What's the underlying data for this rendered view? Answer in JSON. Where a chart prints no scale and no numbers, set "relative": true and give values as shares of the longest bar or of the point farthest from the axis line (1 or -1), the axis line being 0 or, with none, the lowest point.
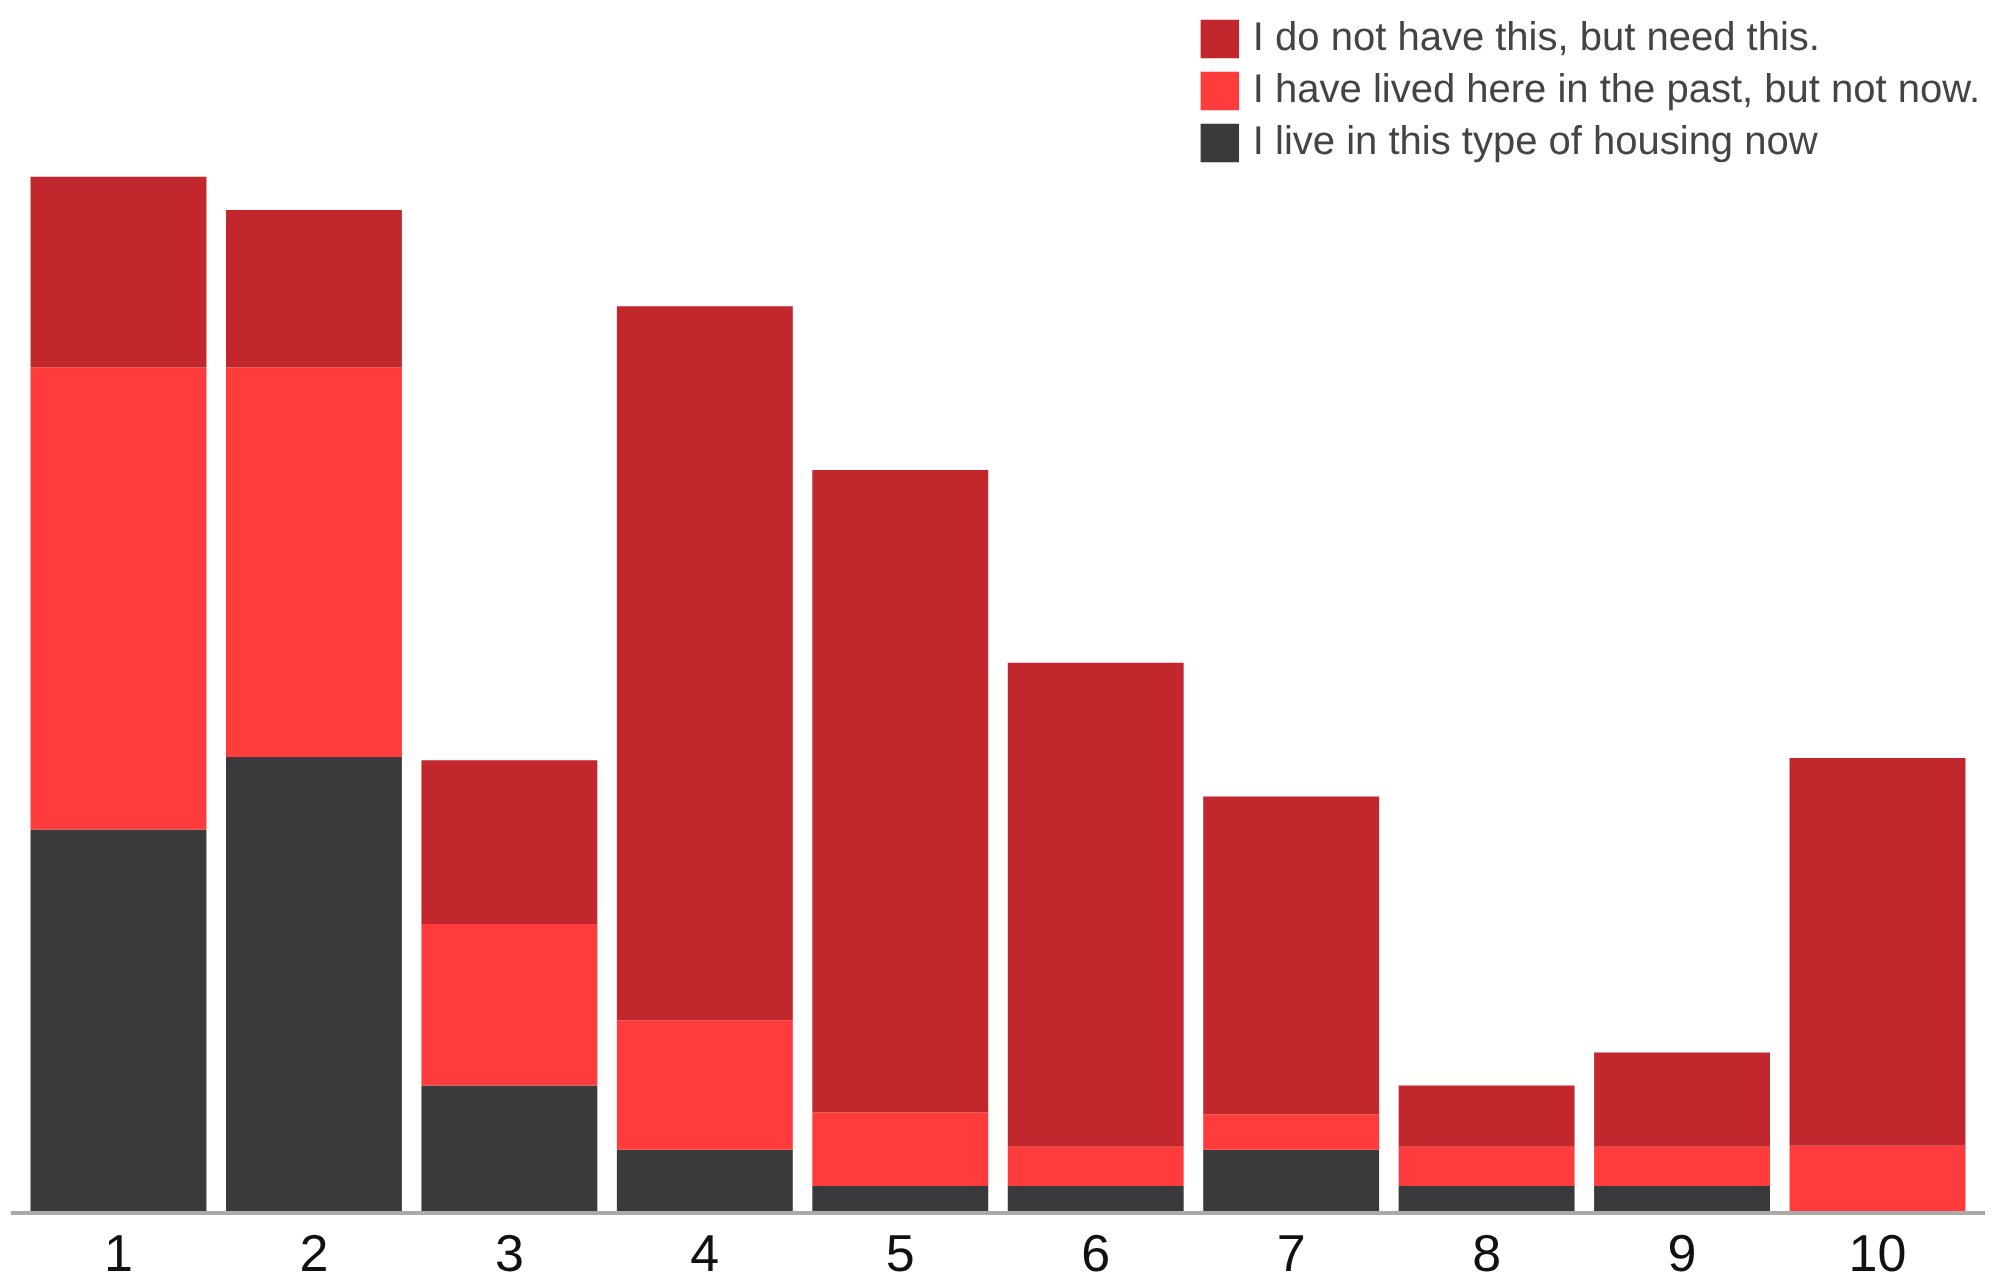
{
  "chart_data": {
    "type": "bar",
    "stacked": true,
    "relative": true,
    "legend": "top right",
    "grid": false,
    "categories": [
      "1",
      "2",
      "3",
      "4",
      "5",
      "6",
      "7",
      "8",
      "9",
      "10"
    ],
    "series": [
      {
        "name": "I live in this type of housing now",
        "color": "#3a3a3c",
        "values": [
          0.37,
          0.44,
          0.123,
          0.061,
          0.026,
          0.026,
          0.061,
          0.026,
          0.026,
          0
        ]
      },
      {
        "name": "I have lived here in the past, but not now.",
        "color": "#ff3b3b",
        "values": [
          0.446,
          0.376,
          0.156,
          0.125,
          0.071,
          0.038,
          0.034,
          0.038,
          0.038,
          0.065
        ]
      },
      {
        "name": "I do not have this, but need this.",
        "color": "#c1272d",
        "values": [
          0.184,
          0.152,
          0.158,
          0.689,
          0.62,
          0.467,
          0.307,
          0.059,
          0.091,
          0.374
        ]
      }
    ]
  }
}
